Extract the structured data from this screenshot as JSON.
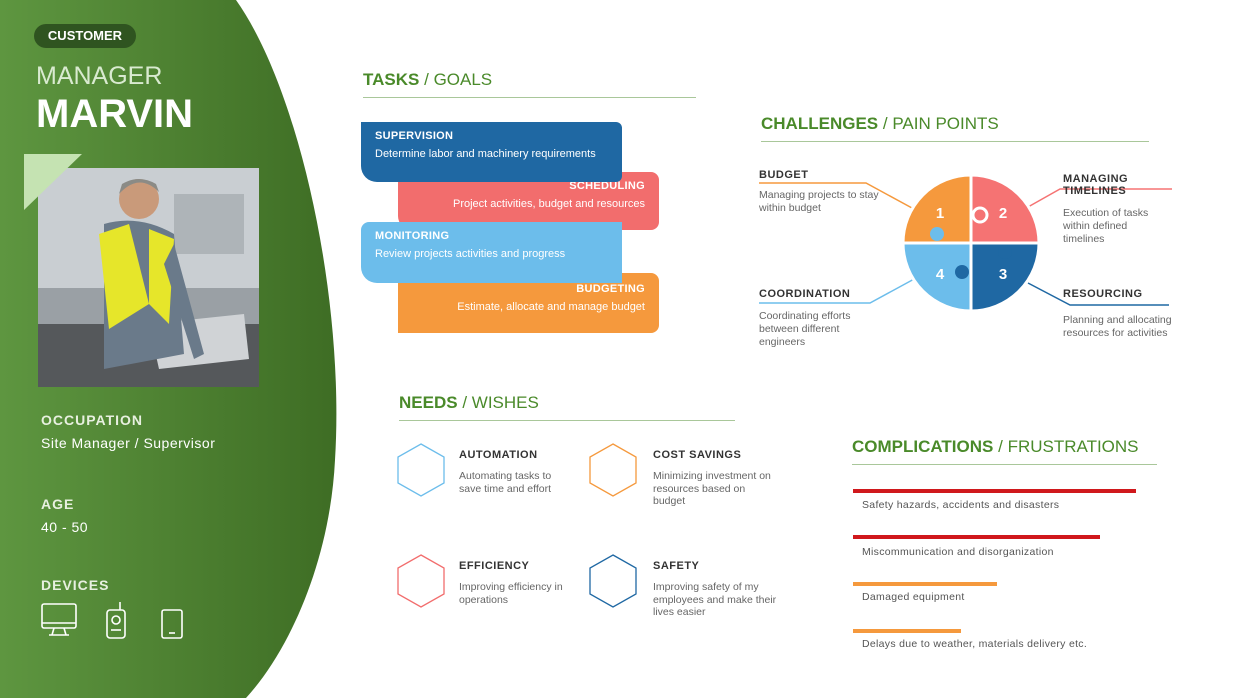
{
  "sidebar": {
    "badge": "CUSTOMER",
    "role": "MANAGER",
    "name": "MARVIN",
    "occupation_label": "OCCUPATION",
    "occupation": "Site Manager / Supervisor",
    "age_label": "AGE",
    "age": "40 - 50",
    "devices_label": "DEVICES"
  },
  "tasks": {
    "heading": "TASKS",
    "separator": "/",
    "subheading": "GOALS",
    "items": [
      {
        "title": "SUPERVISION",
        "text": "Determine labor and machinery requirements"
      },
      {
        "title": "SCHEDULING",
        "text": "Project activities, budget and resources"
      },
      {
        "title": "MONITORING",
        "text": "Review projects activities and progress"
      },
      {
        "title": "BUDGETING",
        "text": "Estimate, allocate and manage budget"
      }
    ]
  },
  "challenges": {
    "heading": "CHALLENGES",
    "separator": "/",
    "subheading": "PAIN POINTS",
    "items": [
      {
        "number": "1",
        "title": "BUDGET",
        "text": "Managing projects to stay within budget"
      },
      {
        "number": "2",
        "title": "MANAGING TIMELINES",
        "text": "Execution of tasks within defined timelines"
      },
      {
        "number": "3",
        "title": "RESOURCING",
        "text": "Planning and allocating resources for activities"
      },
      {
        "number": "4",
        "title": "COORDINATION",
        "text": "Coordinating efforts between different engineers"
      }
    ]
  },
  "needs": {
    "heading": "NEEDS",
    "separator": "/",
    "subheading": "WISHES",
    "items": [
      {
        "title": "AUTOMATION",
        "text": "Automating tasks to save time and effort"
      },
      {
        "title": "COST SAVINGS",
        "text": "Minimizing investment on resources based on budget"
      },
      {
        "title": "EFFICIENCY",
        "text": "Improving efficiency in operations"
      },
      {
        "title": "SAFETY",
        "text": "Improving safety of my employees and make their lives easier"
      }
    ]
  },
  "complications": {
    "heading": "COMPLICATIONS",
    "separator": "/",
    "subheading": "FRUSTRATIONS",
    "items": [
      "Safety hazards, accidents and disasters",
      "Miscommunication and disorganization",
      "Damaged equipment",
      "Delays due to weather, materials delivery etc."
    ]
  }
}
